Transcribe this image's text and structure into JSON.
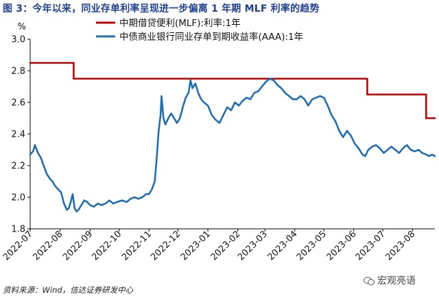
{
  "title": "图 3：今年以来，同业存单利率呈现进一步偏离 1 年期 MLF 利率的趋势",
  "source": "资料来源：Wind，信达证券研发中心",
  "watermark": "宏观亮语",
  "chart_data": {
    "type": "line",
    "unit": "%",
    "ylim": [
      1.8,
      3.0
    ],
    "yticks": [
      "1.8",
      "2.0",
      "2.2",
      "2.4",
      "2.6",
      "2.8",
      "3.0"
    ],
    "xlim": [
      "2022-07-01",
      "2023-08-24"
    ],
    "xticks": [
      "2022-07",
      "2022-08",
      "2022-09",
      "2022-10",
      "2022-11",
      "2022-12",
      "2023-01",
      "2023-02",
      "2023-03",
      "2023-04",
      "2023-05",
      "2023-06",
      "2023-07",
      "2023-08"
    ],
    "grid": false,
    "legend_position": "top-right",
    "series": [
      {
        "name": "中期借贷便利(MLF):利率:1年",
        "color": "#c00000",
        "step": true,
        "points": [
          [
            "2022-07-01",
            2.85
          ],
          [
            "2022-08-15",
            2.75
          ],
          [
            "2023-06-15",
            2.65
          ],
          [
            "2023-08-15",
            2.5
          ],
          [
            "2023-08-24",
            2.5
          ]
        ]
      },
      {
        "name": "中债商业银行同业存单到期收益率(AAA):1年",
        "color": "#1f6db5",
        "points": [
          [
            "2022-07-01",
            2.27
          ],
          [
            "2022-07-04",
            2.29
          ],
          [
            "2022-07-06",
            2.33
          ],
          [
            "2022-07-09",
            2.28
          ],
          [
            "2022-07-12",
            2.25
          ],
          [
            "2022-07-15",
            2.2
          ],
          [
            "2022-07-18",
            2.15
          ],
          [
            "2022-07-21",
            2.12
          ],
          [
            "2022-07-24",
            2.1
          ],
          [
            "2022-07-27",
            2.07
          ],
          [
            "2022-07-30",
            2.05
          ],
          [
            "2022-08-02",
            2.03
          ],
          [
            "2022-08-05",
            1.96
          ],
          [
            "2022-08-08",
            1.92
          ],
          [
            "2022-08-10",
            1.93
          ],
          [
            "2022-08-12",
            1.97
          ],
          [
            "2022-08-14",
            2.02
          ],
          [
            "2022-08-16",
            1.93
          ],
          [
            "2022-08-18",
            1.91
          ],
          [
            "2022-08-20",
            1.92
          ],
          [
            "2022-08-23",
            1.95
          ],
          [
            "2022-08-26",
            1.98
          ],
          [
            "2022-08-29",
            1.97
          ],
          [
            "2022-09-01",
            1.95
          ],
          [
            "2022-09-05",
            1.94
          ],
          [
            "2022-09-09",
            1.96
          ],
          [
            "2022-09-13",
            1.95
          ],
          [
            "2022-09-17",
            1.96
          ],
          [
            "2022-09-21",
            1.98
          ],
          [
            "2022-09-25",
            1.96
          ],
          [
            "2022-09-29",
            1.97
          ],
          [
            "2022-10-04",
            1.98
          ],
          [
            "2022-10-09",
            1.97
          ],
          [
            "2022-10-13",
            1.99
          ],
          [
            "2022-10-17",
            2.0
          ],
          [
            "2022-10-21",
            1.99
          ],
          [
            "2022-10-25",
            2.0
          ],
          [
            "2022-10-29",
            2.02
          ],
          [
            "2022-11-01",
            2.02
          ],
          [
            "2022-11-04",
            2.05
          ],
          [
            "2022-11-07",
            2.1
          ],
          [
            "2022-11-09",
            2.25
          ],
          [
            "2022-11-11",
            2.42
          ],
          [
            "2022-11-13",
            2.52
          ],
          [
            "2022-11-14",
            2.64
          ],
          [
            "2022-11-16",
            2.5
          ],
          [
            "2022-11-18",
            2.46
          ],
          [
            "2022-11-21",
            2.5
          ],
          [
            "2022-11-24",
            2.53
          ],
          [
            "2022-11-27",
            2.5
          ],
          [
            "2022-11-30",
            2.47
          ],
          [
            "2022-12-03",
            2.5
          ],
          [
            "2022-12-06",
            2.57
          ],
          [
            "2022-12-09",
            2.63
          ],
          [
            "2022-12-12",
            2.66
          ],
          [
            "2022-12-14",
            2.74
          ],
          [
            "2022-12-16",
            2.69
          ],
          [
            "2022-12-19",
            2.72
          ],
          [
            "2022-12-22",
            2.66
          ],
          [
            "2022-12-25",
            2.62
          ],
          [
            "2022-12-28",
            2.6
          ],
          [
            "2023-01-01",
            2.58
          ],
          [
            "2023-01-05",
            2.52
          ],
          [
            "2023-01-09",
            2.49
          ],
          [
            "2023-01-13",
            2.47
          ],
          [
            "2023-01-17",
            2.52
          ],
          [
            "2023-01-21",
            2.57
          ],
          [
            "2023-01-25",
            2.55
          ],
          [
            "2023-01-29",
            2.6
          ],
          [
            "2023-02-02",
            2.58
          ],
          [
            "2023-02-06",
            2.61
          ],
          [
            "2023-02-10",
            2.63
          ],
          [
            "2023-02-14",
            2.62
          ],
          [
            "2023-02-18",
            2.66
          ],
          [
            "2023-02-22",
            2.67
          ],
          [
            "2023-02-26",
            2.7
          ],
          [
            "2023-03-02",
            2.73
          ],
          [
            "2023-03-06",
            2.75
          ],
          [
            "2023-03-10",
            2.74
          ],
          [
            "2023-03-14",
            2.71
          ],
          [
            "2023-03-18",
            2.69
          ],
          [
            "2023-03-22",
            2.66
          ],
          [
            "2023-03-26",
            2.64
          ],
          [
            "2023-03-30",
            2.62
          ],
          [
            "2023-04-03",
            2.62
          ],
          [
            "2023-04-07",
            2.64
          ],
          [
            "2023-04-11",
            2.62
          ],
          [
            "2023-04-15",
            2.58
          ],
          [
            "2023-04-19",
            2.62
          ],
          [
            "2023-04-23",
            2.63
          ],
          [
            "2023-04-27",
            2.64
          ],
          [
            "2023-05-01",
            2.63
          ],
          [
            "2023-05-05",
            2.58
          ],
          [
            "2023-05-09",
            2.52
          ],
          [
            "2023-05-13",
            2.48
          ],
          [
            "2023-05-17",
            2.42
          ],
          [
            "2023-05-21",
            2.38
          ],
          [
            "2023-05-25",
            2.42
          ],
          [
            "2023-05-29",
            2.39
          ],
          [
            "2023-06-02",
            2.34
          ],
          [
            "2023-06-06",
            2.31
          ],
          [
            "2023-06-10",
            2.27
          ],
          [
            "2023-06-13",
            2.26
          ],
          [
            "2023-06-16",
            2.3
          ],
          [
            "2023-06-20",
            2.32
          ],
          [
            "2023-06-24",
            2.33
          ],
          [
            "2023-06-28",
            2.31
          ],
          [
            "2023-07-02",
            2.28
          ],
          [
            "2023-07-06",
            2.3
          ],
          [
            "2023-07-10",
            2.32
          ],
          [
            "2023-07-14",
            2.3
          ],
          [
            "2023-07-18",
            2.28
          ],
          [
            "2023-07-22",
            2.31
          ],
          [
            "2023-07-26",
            2.33
          ],
          [
            "2023-07-30",
            2.3
          ],
          [
            "2023-08-03",
            2.29
          ],
          [
            "2023-08-07",
            2.3
          ],
          [
            "2023-08-11",
            2.28
          ],
          [
            "2023-08-15",
            2.27
          ],
          [
            "2023-08-18",
            2.26
          ],
          [
            "2023-08-21",
            2.27
          ],
          [
            "2023-08-24",
            2.26
          ]
        ]
      }
    ]
  }
}
